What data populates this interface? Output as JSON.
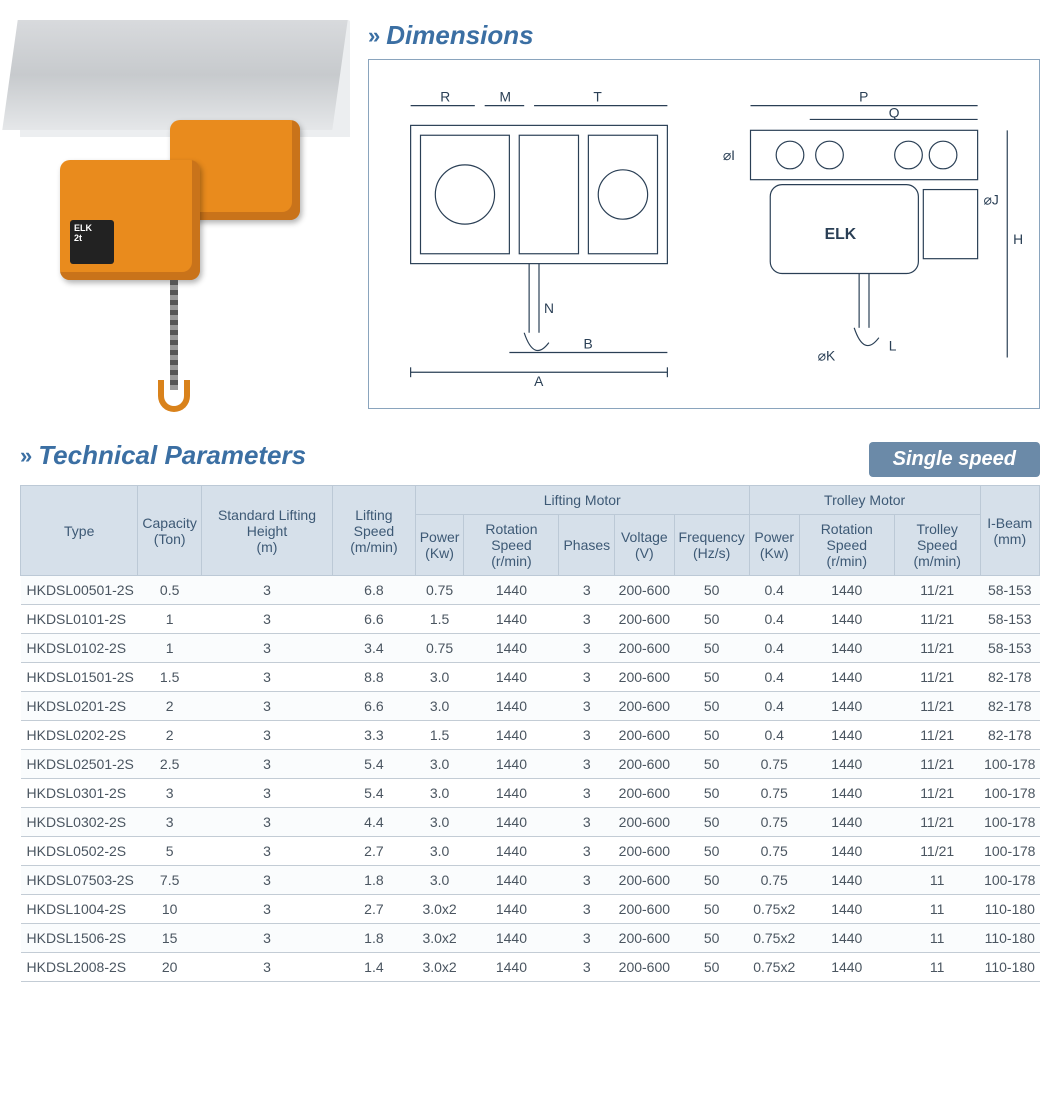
{
  "sections": {
    "dimensions_title": "Dimensions",
    "parameters_title": "Technical Parameters",
    "speed_badge": "Single speed"
  },
  "product": {
    "brand": "ELK",
    "capacity_label": "2t"
  },
  "diagram_labels": {
    "left": [
      "R",
      "M",
      "T",
      "N",
      "B",
      "A"
    ],
    "right": [
      "P",
      "Q",
      "H",
      "L",
      "⌀I",
      "⌀J",
      "⌀K"
    ],
    "box_text": "ELK"
  },
  "colors": {
    "accent": "#3b6fa3",
    "header_bg": "#d6e0ea",
    "header_text": "#3d5975",
    "row_border": "#c3ccd5",
    "badge_bg": "#6b8aa8",
    "hoist_orange": "#e98b1d",
    "diagram_line": "#2a3f55"
  },
  "table": {
    "group_headers": {
      "lifting_motor": "Lifting Motor",
      "trolley_motor": "Trolley Motor"
    },
    "columns": [
      {
        "key": "type",
        "label": "Type"
      },
      {
        "key": "capacity",
        "label": "Capacity",
        "unit": "(Ton)"
      },
      {
        "key": "height",
        "label": "Standard Lifting Height",
        "unit": "(m)"
      },
      {
        "key": "lspeed",
        "label": "Lifting Speed",
        "unit": "(m/min)"
      },
      {
        "key": "lpower",
        "label": "Power",
        "unit": "(Kw)"
      },
      {
        "key": "lrot",
        "label": "Rotation Speed",
        "unit": "(r/min)"
      },
      {
        "key": "phases",
        "label": "Phases"
      },
      {
        "key": "volt",
        "label": "Voltage",
        "unit": "(V)"
      },
      {
        "key": "freq",
        "label": "Frequency",
        "unit": "(Hz/s)"
      },
      {
        "key": "tpower",
        "label": "Power",
        "unit": "(Kw)"
      },
      {
        "key": "trot",
        "label": "Rotation Speed",
        "unit": "(r/min)"
      },
      {
        "key": "tspeed",
        "label": "Trolley Speed",
        "unit": "(m/min)"
      },
      {
        "key": "ibeam",
        "label": "I-Beam",
        "unit": "(mm)"
      }
    ],
    "rows": [
      [
        "HKDSL00501-2S",
        "0.5",
        "3",
        "6.8",
        "0.75",
        "1440",
        "3",
        "200-600",
        "50",
        "0.4",
        "1440",
        "11/21",
        "58-153"
      ],
      [
        "HKDSL0101-2S",
        "1",
        "3",
        "6.6",
        "1.5",
        "1440",
        "3",
        "200-600",
        "50",
        "0.4",
        "1440",
        "11/21",
        "58-153"
      ],
      [
        "HKDSL0102-2S",
        "1",
        "3",
        "3.4",
        "0.75",
        "1440",
        "3",
        "200-600",
        "50",
        "0.4",
        "1440",
        "11/21",
        "58-153"
      ],
      [
        "HKDSL01501-2S",
        "1.5",
        "3",
        "8.8",
        "3.0",
        "1440",
        "3",
        "200-600",
        "50",
        "0.4",
        "1440",
        "11/21",
        "82-178"
      ],
      [
        "HKDSL0201-2S",
        "2",
        "3",
        "6.6",
        "3.0",
        "1440",
        "3",
        "200-600",
        "50",
        "0.4",
        "1440",
        "11/21",
        "82-178"
      ],
      [
        "HKDSL0202-2S",
        "2",
        "3",
        "3.3",
        "1.5",
        "1440",
        "3",
        "200-600",
        "50",
        "0.4",
        "1440",
        "11/21",
        "82-178"
      ],
      [
        "HKDSL02501-2S",
        "2.5",
        "3",
        "5.4",
        "3.0",
        "1440",
        "3",
        "200-600",
        "50",
        "0.75",
        "1440",
        "11/21",
        "100-178"
      ],
      [
        "HKDSL0301-2S",
        "3",
        "3",
        "5.4",
        "3.0",
        "1440",
        "3",
        "200-600",
        "50",
        "0.75",
        "1440",
        "11/21",
        "100-178"
      ],
      [
        "HKDSL0302-2S",
        "3",
        "3",
        "4.4",
        "3.0",
        "1440",
        "3",
        "200-600",
        "50",
        "0.75",
        "1440",
        "11/21",
        "100-178"
      ],
      [
        "HKDSL0502-2S",
        "5",
        "3",
        "2.7",
        "3.0",
        "1440",
        "3",
        "200-600",
        "50",
        "0.75",
        "1440",
        "11/21",
        "100-178"
      ],
      [
        "HKDSL07503-2S",
        "7.5",
        "3",
        "1.8",
        "3.0",
        "1440",
        "3",
        "200-600",
        "50",
        "0.75",
        "1440",
        "11",
        "100-178"
      ],
      [
        "HKDSL1004-2S",
        "10",
        "3",
        "2.7",
        "3.0x2",
        "1440",
        "3",
        "200-600",
        "50",
        "0.75x2",
        "1440",
        "11",
        "110-180"
      ],
      [
        "HKDSL1506-2S",
        "15",
        "3",
        "1.8",
        "3.0x2",
        "1440",
        "3",
        "200-600",
        "50",
        "0.75x2",
        "1440",
        "11",
        "110-180"
      ],
      [
        "HKDSL2008-2S",
        "20",
        "3",
        "1.4",
        "3.0x2",
        "1440",
        "3",
        "200-600",
        "50",
        "0.75x2",
        "1440",
        "11",
        "110-180"
      ]
    ]
  }
}
